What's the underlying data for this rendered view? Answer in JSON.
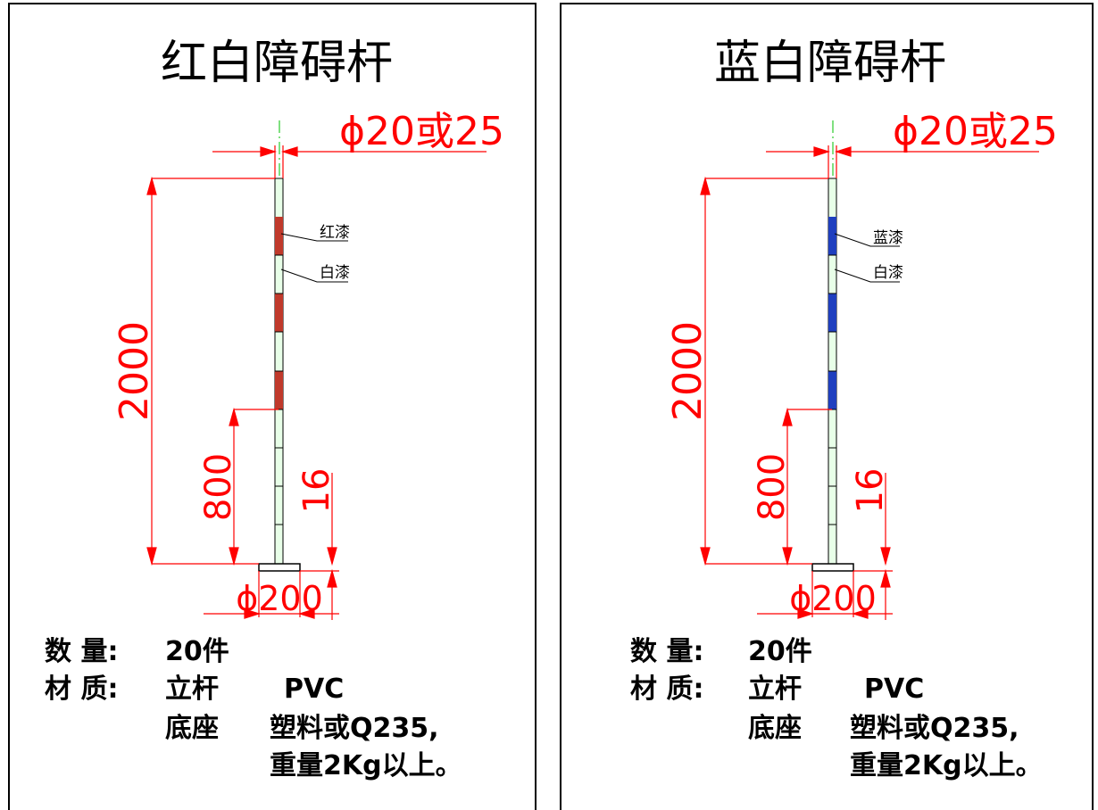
{
  "panels": [
    {
      "title": "红白障碍杆",
      "stripe_color": "#c0392b",
      "stripe_label": "红漆",
      "white_label": "白漆",
      "dims": {
        "diameter": "ϕ20或25",
        "height": "2000",
        "mid": "800",
        "small": "16",
        "base": "ϕ200"
      },
      "specs": {
        "qty_label": "数  量:",
        "qty_value": "20件",
        "mat_label": "材  质:",
        "pole_label": "立杆",
        "pole_value": "PVC",
        "base_label": "底座",
        "base_value": "塑料或Q235,",
        "weight_value": "重量2Kg以上。"
      }
    },
    {
      "title": "蓝白障碍杆",
      "stripe_color": "#1f3fbf",
      "stripe_label": "蓝漆",
      "white_label": "白漆",
      "dims": {
        "diameter": "ϕ20或25",
        "height": "2000",
        "mid": "800",
        "small": "16",
        "base": "ϕ200"
      },
      "specs": {
        "qty_label": "数  量:",
        "qty_value": "20件",
        "mat_label": "材  质:",
        "pole_label": "立杆",
        "pole_value": "PVC",
        "base_label": "底座",
        "base_value": "塑料或Q235,",
        "weight_value": "重量2Kg以上。"
      }
    }
  ],
  "colors": {
    "dimension": "#ff0000",
    "centerline": "#00c000",
    "pole_white": "#e8ffe8"
  }
}
